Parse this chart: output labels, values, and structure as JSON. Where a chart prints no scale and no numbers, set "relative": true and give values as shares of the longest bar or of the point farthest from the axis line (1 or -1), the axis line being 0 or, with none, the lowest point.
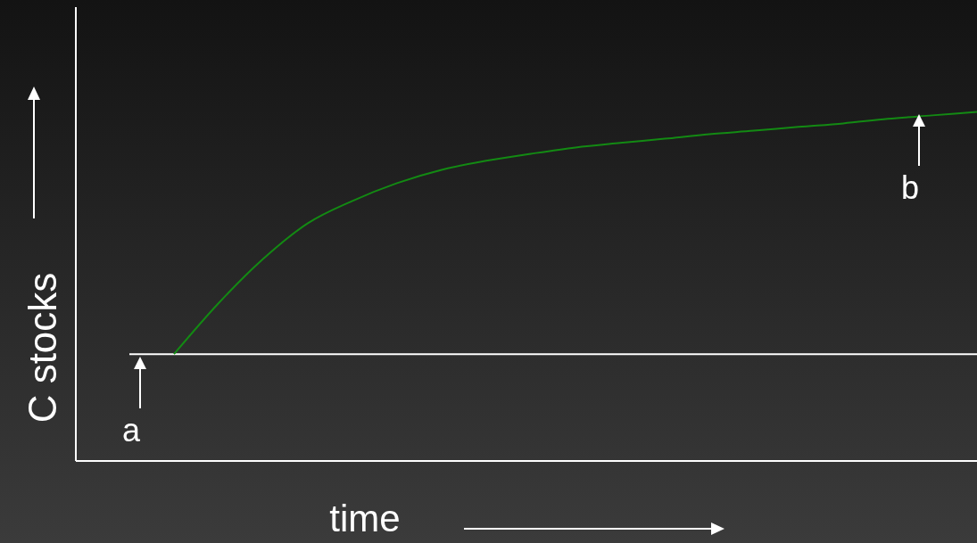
{
  "chart_data": {
    "type": "line",
    "relative": true,
    "xlabel": "time",
    "ylabel": "C stocks",
    "marker": "none",
    "categories": [
      null,
      null,
      null,
      null,
      null,
      null,
      null,
      null,
      null,
      null,
      null,
      null,
      null,
      null,
      null,
      null,
      null,
      null,
      null,
      null
    ],
    "series": [
      {
        "color": "#ffffff",
        "values": [
          0.306,
          0.306,
          0.306,
          0.306,
          0.306,
          0.306,
          0.306,
          0.306,
          0.306,
          0.306,
          0.306,
          0.306,
          0.306,
          0.306,
          0.306,
          0.306,
          0.306,
          0.306,
          0.306,
          0.306
        ]
      },
      {
        "color": "#138a13",
        "values": [
          null,
          0.306,
          0.452,
          0.579,
          0.681,
          0.745,
          0.796,
          0.834,
          0.86,
          0.88,
          0.898,
          0.911,
          0.923,
          0.936,
          0.946,
          0.957,
          0.967,
          0.98,
          0.99,
          1.0
        ]
      }
    ],
    "annotations": [
      "a",
      "b"
    ]
  }
}
